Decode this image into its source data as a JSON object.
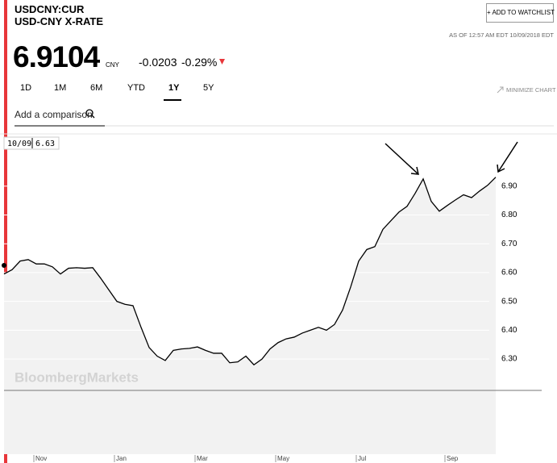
{
  "header": {
    "ticker": "USDCNY:CUR",
    "name": "USD-CNY X-RATE",
    "price": "6.9104",
    "currency": "CNY",
    "change": "-0.0203",
    "change_pct": "-0.29%",
    "watchlist": "+ ADD TO WATCHLIST",
    "as_of": "AS OF 12:57 AM EDT 10/09/2018 EDT"
  },
  "tabs": [
    "1D",
    "1M",
    "6M",
    "YTD",
    "1Y",
    "5Y"
  ],
  "active_tab": "1Y",
  "minimize": "MINIMIZE CHART",
  "comparison": "Add a comparison",
  "crosshair": {
    "date": "10/09",
    "value": "6.63"
  },
  "watermark": "BloombergMarkets",
  "chart_data": {
    "type": "line",
    "color": "#000000",
    "area_color": "#f2f2f2",
    "grid": true,
    "categories": [
      null,
      null,
      null,
      null,
      "Nov",
      null,
      null,
      null,
      null,
      null,
      null,
      null,
      null,
      null,
      "Jan",
      null,
      null,
      null,
      null,
      null,
      null,
      null,
      null,
      null,
      "Mar",
      null,
      null,
      null,
      null,
      null,
      null,
      null,
      null,
      null,
      "May",
      null,
      null,
      null,
      null,
      null,
      null,
      null,
      null,
      null,
      "Jul",
      null,
      null,
      null,
      null,
      null,
      null,
      null,
      null,
      null,
      null,
      "Sep",
      null,
      null,
      null,
      null,
      null,
      null
    ],
    "values": [
      6.595,
      6.61,
      6.64,
      6.645,
      6.63,
      6.63,
      6.62,
      6.595,
      6.615,
      6.617,
      6.615,
      6.617,
      6.58,
      6.54,
      6.5,
      6.49,
      6.485,
      6.41,
      6.34,
      6.31,
      6.295,
      6.33,
      6.335,
      6.337,
      6.342,
      6.33,
      6.32,
      6.32,
      6.287,
      6.29,
      6.31,
      6.28,
      6.3,
      6.335,
      6.357,
      6.37,
      6.376,
      6.39,
      6.4,
      6.41,
      6.4,
      6.42,
      6.47,
      6.55,
      6.64,
      6.68,
      6.69,
      6.75,
      6.78,
      6.81,
      6.83,
      6.875,
      6.925,
      6.847,
      6.813,
      6.833,
      6.852,
      6.87,
      6.86,
      6.883,
      6.903,
      6.931
    ],
    "ylim": [
      5.97,
      7.07
    ],
    "yticks": [
      {
        "value": 6.3,
        "label": "6.30"
      },
      {
        "value": 6.4,
        "label": "6.40"
      },
      {
        "value": 6.5,
        "label": "6.50"
      },
      {
        "value": 6.6,
        "label": "6.60"
      },
      {
        "value": 6.7,
        "label": "6.70"
      },
      {
        "value": 6.8,
        "label": "6.80"
      },
      {
        "value": 6.9,
        "label": "6.90"
      }
    ]
  }
}
